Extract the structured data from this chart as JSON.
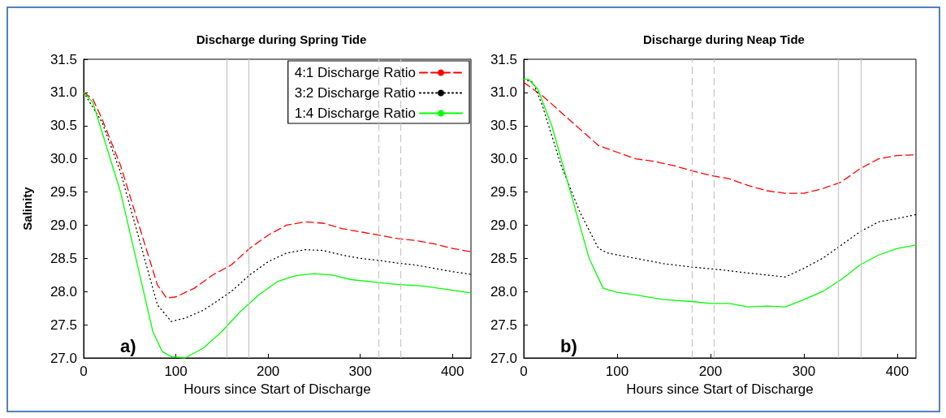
{
  "chart_data": [
    {
      "type": "line",
      "title": "Discharge during Spring Tide",
      "xlabel": "Hours since Start of Discharge",
      "ylabel": "Salinity",
      "annotations": [
        "a)"
      ],
      "legend": "top right",
      "grid": false,
      "xlim": [
        0,
        420
      ],
      "xticks": [
        0,
        100,
        200,
        300,
        400
      ],
      "ylim": [
        27,
        31.5
      ],
      "yticks": [
        {
          "value": 27,
          "label": "27.0"
        },
        27.5,
        {
          "value": 28,
          "label": "28.0"
        },
        28.5,
        {
          "value": 29,
          "label": "29.0"
        },
        29.5,
        {
          "value": 30,
          "label": "30.0"
        },
        30.5,
        {
          "value": 31,
          "label": "31.0"
        },
        31.5
      ],
      "ref_lines": [
        {
          "axis": "x",
          "value": 155,
          "label": null,
          "color": "#c8c8c8",
          "line_style": "solid"
        },
        {
          "axis": "x",
          "value": 179,
          "label": null,
          "color": "#c8c8c8",
          "line_style": "solid"
        },
        {
          "axis": "x",
          "value": 320,
          "label": null,
          "color": "#c8c8c8",
          "line_style": "dashed"
        },
        {
          "axis": "x",
          "value": 344,
          "label": null,
          "color": "#c8c8c8",
          "line_style": "dashed"
        }
      ],
      "series": [
        {
          "name": "4:1 Discharge Ratio",
          "color": "#ff0000",
          "line_style": "dashed",
          "x": [
            0,
            10,
            20,
            40,
            60,
            80,
            90,
            100,
            120,
            140,
            160,
            180,
            200,
            220,
            240,
            260,
            280,
            300,
            320,
            340,
            360,
            380,
            400,
            420
          ],
          "values": [
            31.0,
            30.9,
            30.6,
            29.9,
            29.0,
            28.1,
            27.9,
            27.92,
            28.05,
            28.25,
            28.4,
            28.65,
            28.85,
            29.0,
            29.05,
            29.03,
            28.95,
            28.9,
            28.85,
            28.8,
            28.77,
            28.72,
            28.65,
            28.6
          ]
        },
        {
          "name": "3:2 Discharge Ratio",
          "color": "#000000",
          "line_style": "dotted",
          "x": [
            0,
            20,
            40,
            60,
            80,
            95,
            110,
            130,
            160,
            180,
            200,
            220,
            240,
            260,
            280,
            300,
            320,
            340,
            360,
            380,
            400,
            420
          ],
          "values": [
            31.0,
            30.55,
            29.8,
            28.8,
            27.8,
            27.55,
            27.6,
            27.72,
            28.0,
            28.25,
            28.45,
            28.58,
            28.63,
            28.62,
            28.55,
            28.5,
            28.47,
            28.43,
            28.4,
            28.35,
            28.3,
            28.26
          ]
        },
        {
          "name": "1:4 Discharge Ratio",
          "color": "#00ff00",
          "line_style": "solid",
          "x": [
            0,
            10,
            20,
            40,
            60,
            75,
            85,
            95,
            110,
            130,
            150,
            170,
            190,
            210,
            230,
            250,
            270,
            290,
            310,
            330,
            350,
            370,
            400,
            420
          ],
          "values": [
            31.0,
            30.85,
            30.4,
            29.5,
            28.3,
            27.4,
            27.1,
            27.02,
            27.0,
            27.15,
            27.4,
            27.7,
            27.95,
            28.15,
            28.24,
            28.27,
            28.25,
            28.18,
            28.15,
            28.12,
            28.1,
            28.08,
            28.02,
            27.98
          ]
        }
      ]
    },
    {
      "type": "line",
      "title": "Discharge during Neap Tide",
      "xlabel": "Hours since Start of Discharge",
      "annotations": [
        "b)"
      ],
      "legend": false,
      "grid": false,
      "xlim": [
        0,
        420
      ],
      "xticks": [
        0,
        100,
        200,
        300,
        400
      ],
      "ylim": [
        27,
        31.5
      ],
      "yticks": [
        {
          "value": 27,
          "label": "27.0"
        },
        27.5,
        {
          "value": 28,
          "label": "28.0"
        },
        28.5,
        {
          "value": 29,
          "label": "29.0"
        },
        29.5,
        {
          "value": 30,
          "label": "30.0"
        },
        30.5,
        {
          "value": 31,
          "label": "31.0"
        },
        31.5
      ],
      "ref_lines": [
        {
          "axis": "x",
          "value": 180,
          "label": null,
          "color": "#c8c8c8",
          "line_style": "dashed"
        },
        {
          "axis": "x",
          "value": 204,
          "label": null,
          "color": "#c8c8c8",
          "line_style": "dashed"
        },
        {
          "axis": "x",
          "value": 337,
          "label": null,
          "color": "#c8c8c8",
          "line_style": "solid"
        },
        {
          "axis": "x",
          "value": 361,
          "label": null,
          "color": "#c8c8c8",
          "line_style": "solid"
        }
      ],
      "series": [
        {
          "color": "#ff0000",
          "line_style": "dashed",
          "x": [
            0,
            20,
            40,
            60,
            80,
            100,
            120,
            140,
            160,
            180,
            200,
            220,
            240,
            260,
            280,
            300,
            320,
            340,
            360,
            380,
            400,
            420
          ],
          "values": [
            31.15,
            30.95,
            30.7,
            30.45,
            30.2,
            30.1,
            30.0,
            29.96,
            29.9,
            29.82,
            29.75,
            29.7,
            29.6,
            29.52,
            29.48,
            29.48,
            29.55,
            29.65,
            29.85,
            30.0,
            30.05,
            30.06
          ]
        },
        {
          "color": "#000000",
          "line_style": "dotted",
          "x": [
            0,
            10,
            20,
            40,
            60,
            80,
            90,
            120,
            150,
            180,
            210,
            240,
            260,
            280,
            300,
            320,
            340,
            360,
            380,
            400,
            420
          ],
          "values": [
            31.2,
            31.15,
            30.8,
            29.9,
            29.2,
            28.65,
            28.58,
            28.5,
            28.42,
            28.37,
            28.33,
            28.28,
            28.25,
            28.22,
            28.35,
            28.5,
            28.7,
            28.9,
            29.05,
            29.1,
            29.16
          ]
        },
        {
          "color": "#00ff00",
          "line_style": "solid",
          "x": [
            0,
            5,
            15,
            30,
            50,
            70,
            85,
            100,
            120,
            150,
            180,
            200,
            220,
            240,
            260,
            280,
            300,
            320,
            340,
            360,
            380,
            400,
            420
          ],
          "values": [
            31.2,
            31.2,
            31.05,
            30.5,
            29.5,
            28.5,
            28.05,
            27.99,
            27.95,
            27.88,
            27.85,
            27.82,
            27.82,
            27.77,
            27.78,
            27.77,
            27.88,
            28.0,
            28.18,
            28.4,
            28.55,
            28.65,
            28.7
          ]
        }
      ]
    }
  ]
}
